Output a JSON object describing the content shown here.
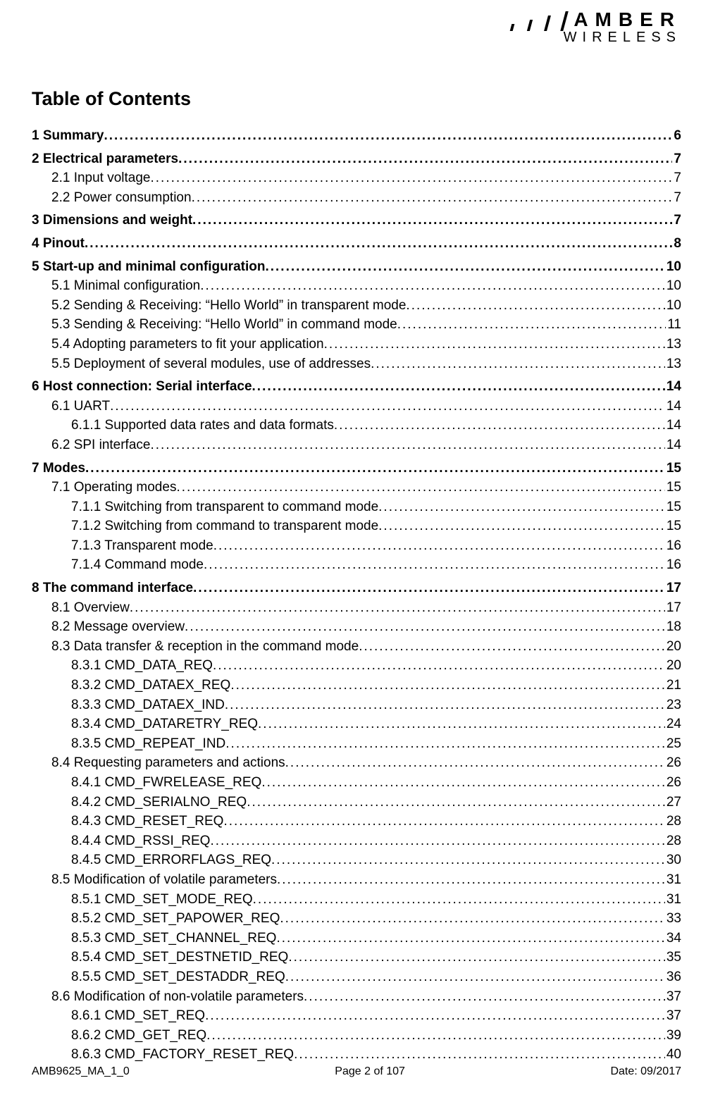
{
  "logo": {
    "top": "AMBER",
    "bottom": "WIRELESS"
  },
  "heading": "Table of Contents",
  "toc": [
    {
      "group": [
        {
          "level": 1,
          "label": "1 Summary",
          "page": "6"
        }
      ]
    },
    {
      "group": [
        {
          "level": 1,
          "label": "2 Electrical parameters",
          "page": "7"
        },
        {
          "level": 2,
          "label": "2.1 Input voltage",
          "page": "7"
        },
        {
          "level": 2,
          "label": "2.2 Power consumption",
          "page": "7"
        }
      ]
    },
    {
      "group": [
        {
          "level": 1,
          "label": "3 Dimensions and weight",
          "page": "7"
        }
      ]
    },
    {
      "group": [
        {
          "level": 1,
          "label": "4 Pinout",
          "page": "8"
        }
      ]
    },
    {
      "group": [
        {
          "level": 1,
          "label": "5 Start-up and minimal configuration",
          "page": "10"
        },
        {
          "level": 2,
          "label": "5.1 Minimal configuration",
          "page": "10"
        },
        {
          "level": 2,
          "label": "5.2 Sending & Receiving: “Hello World” in transparent mode",
          "page": "10"
        },
        {
          "level": 2,
          "label": "5.3 Sending & Receiving: “Hello World” in command mode",
          "page": "11"
        },
        {
          "level": 2,
          "label": "5.4 Adopting parameters to fit your application",
          "page": "13"
        },
        {
          "level": 2,
          "label": "5.5 Deployment of several modules, use of addresses",
          "page": "13"
        }
      ]
    },
    {
      "group": [
        {
          "level": 1,
          "label": "6 Host connection: Serial interface",
          "page": "14"
        },
        {
          "level": 2,
          "label": "6.1 UART",
          "page": "14"
        },
        {
          "level": 3,
          "label": "6.1.1 Supported data rates and data formats",
          "page": "14"
        },
        {
          "level": 2,
          "label": "6.2 SPI interface",
          "page": "14"
        }
      ]
    },
    {
      "group": [
        {
          "level": 1,
          "label": "7 Modes",
          "page": "15"
        },
        {
          "level": 2,
          "label": "7.1 Operating modes",
          "page": "15"
        },
        {
          "level": 3,
          "label": "7.1.1 Switching from transparent to command mode",
          "page": "15"
        },
        {
          "level": 3,
          "label": "7.1.2 Switching from command to transparent mode",
          "page": "15"
        },
        {
          "level": 3,
          "label": "7.1.3 Transparent mode",
          "page": "16"
        },
        {
          "level": 3,
          "label": "7.1.4 Command mode",
          "page": "16"
        }
      ]
    },
    {
      "group": [
        {
          "level": 1,
          "label": "8 The command interface",
          "page": "17"
        },
        {
          "level": 2,
          "label": "8.1 Overview",
          "page": "17"
        },
        {
          "level": 2,
          "label": "8.2 Message overview",
          "page": "18"
        },
        {
          "level": 2,
          "label": "8.3 Data transfer & reception in the command mode",
          "page": "20"
        },
        {
          "level": 3,
          "label": "8.3.1 CMD_DATA_REQ",
          "page": "20"
        },
        {
          "level": 3,
          "label": "8.3.2 CMD_DATAEX_REQ",
          "page": "21"
        },
        {
          "level": 3,
          "label": "8.3.3 CMD_DATAEX_IND",
          "page": "23"
        },
        {
          "level": 3,
          "label": "8.3.4 CMD_DATARETRY_REQ",
          "page": "24"
        },
        {
          "level": 3,
          "label": "8.3.5 CMD_REPEAT_IND",
          "page": "25"
        },
        {
          "level": 2,
          "label": "8.4 Requesting parameters and actions",
          "page": "26"
        },
        {
          "level": 3,
          "label": "8.4.1 CMD_FWRELEASE_REQ",
          "page": "26"
        },
        {
          "level": 3,
          "label": "8.4.2 CMD_SERIALNO_REQ",
          "page": "27"
        },
        {
          "level": 3,
          "label": "8.4.3 CMD_RESET_REQ",
          "page": "28"
        },
        {
          "level": 3,
          "label": "8.4.4 CMD_RSSI_REQ",
          "page": "28"
        },
        {
          "level": 3,
          "label": "8.4.5 CMD_ERRORFLAGS_REQ",
          "page": "30"
        },
        {
          "level": 2,
          "label": "8.5 Modification of volatile parameters",
          "page": "31"
        },
        {
          "level": 3,
          "label": "8.5.1 CMD_SET_MODE_REQ",
          "page": "31"
        },
        {
          "level": 3,
          "label": "8.5.2 CMD_SET_PAPOWER_REQ",
          "page": "33"
        },
        {
          "level": 3,
          "label": "8.5.3 CMD_SET_CHANNEL_REQ",
          "page": "34"
        },
        {
          "level": 3,
          "label": "8.5.4 CMD_SET_DESTNETID_REQ",
          "page": "35"
        },
        {
          "level": 3,
          "label": "8.5.5 CMD_SET_DESTADDR_REQ",
          "page": "36"
        },
        {
          "level": 2,
          "label": "8.6 Modification of non-volatile parameters",
          "page": "37"
        },
        {
          "level": 3,
          "label": "8.6.1 CMD_SET_REQ",
          "page": "37"
        },
        {
          "level": 3,
          "label": "8.6.2 CMD_GET_REQ",
          "page": "39"
        },
        {
          "level": 3,
          "label": "8.6.3 CMD_FACTORY_RESET_REQ",
          "page": "40"
        }
      ]
    }
  ],
  "footer": {
    "left": "AMB9625_MA_1_0",
    "center": "Page 2 of 107",
    "right": "Date: 09/2017"
  }
}
